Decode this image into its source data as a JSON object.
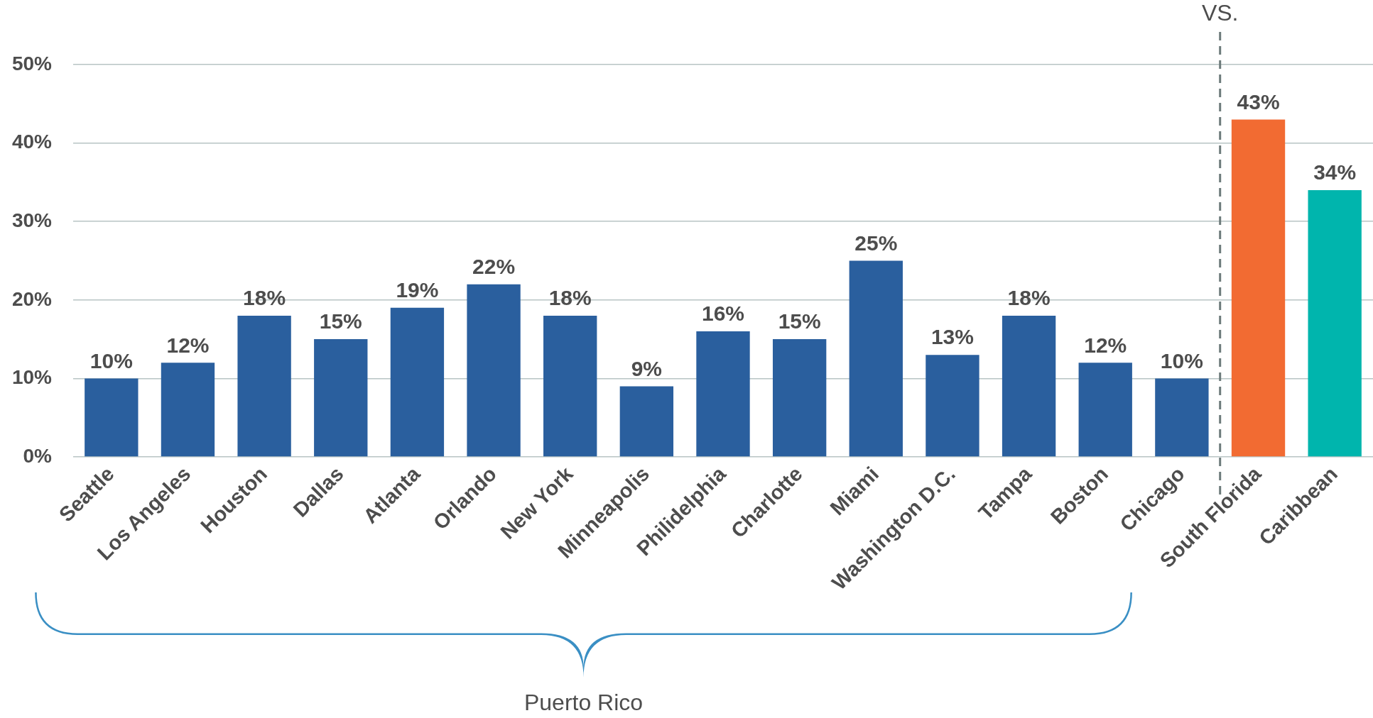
{
  "chart_data": {
    "type": "bar",
    "categories": [
      "Seattle",
      "Los Angeles",
      "Houston",
      "Dallas",
      "Atlanta",
      "Orlando",
      "New York",
      "Minneapolis",
      "Philidelphia",
      "Charlotte",
      "Miami",
      "Washington D.C.",
      "Tampa",
      "Boston",
      "Chicago",
      "South Florida",
      "Caribbean"
    ],
    "values": [
      10,
      12,
      18,
      15,
      19,
      22,
      18,
      9,
      16,
      15,
      25,
      13,
      18,
      12,
      10,
      43,
      34
    ],
    "value_labels": [
      "10%",
      "12%",
      "18%",
      "15%",
      "19%",
      "22%",
      "18%",
      "9%",
      "16%",
      "15%",
      "25%",
      "13%",
      "18%",
      "12%",
      "10%",
      "43%",
      "34%"
    ],
    "colors": [
      "#2a5f9e",
      "#2a5f9e",
      "#2a5f9e",
      "#2a5f9e",
      "#2a5f9e",
      "#2a5f9e",
      "#2a5f9e",
      "#2a5f9e",
      "#2a5f9e",
      "#2a5f9e",
      "#2a5f9e",
      "#2a5f9e",
      "#2a5f9e",
      "#2a5f9e",
      "#2a5f9e",
      "#f26b32",
      "#00b5ad"
    ],
    "ylim": [
      0,
      50
    ],
    "yticks": [
      {
        "value": 0,
        "label": "0%"
      },
      {
        "value": 10,
        "label": "10%"
      },
      {
        "value": 20,
        "label": "20%"
      },
      {
        "value": 30,
        "label": "30%"
      },
      {
        "value": 40,
        "label": "40%"
      },
      {
        "value": 50,
        "label": "50%"
      }
    ],
    "grid": "y",
    "ref_lines": [
      {
        "axis": "x",
        "value": "South Florida",
        "label": "VS.",
        "color": "#6d7b7b",
        "line_style": "dashed"
      }
    ],
    "annotations": [
      "Puerto Rico"
    ]
  }
}
